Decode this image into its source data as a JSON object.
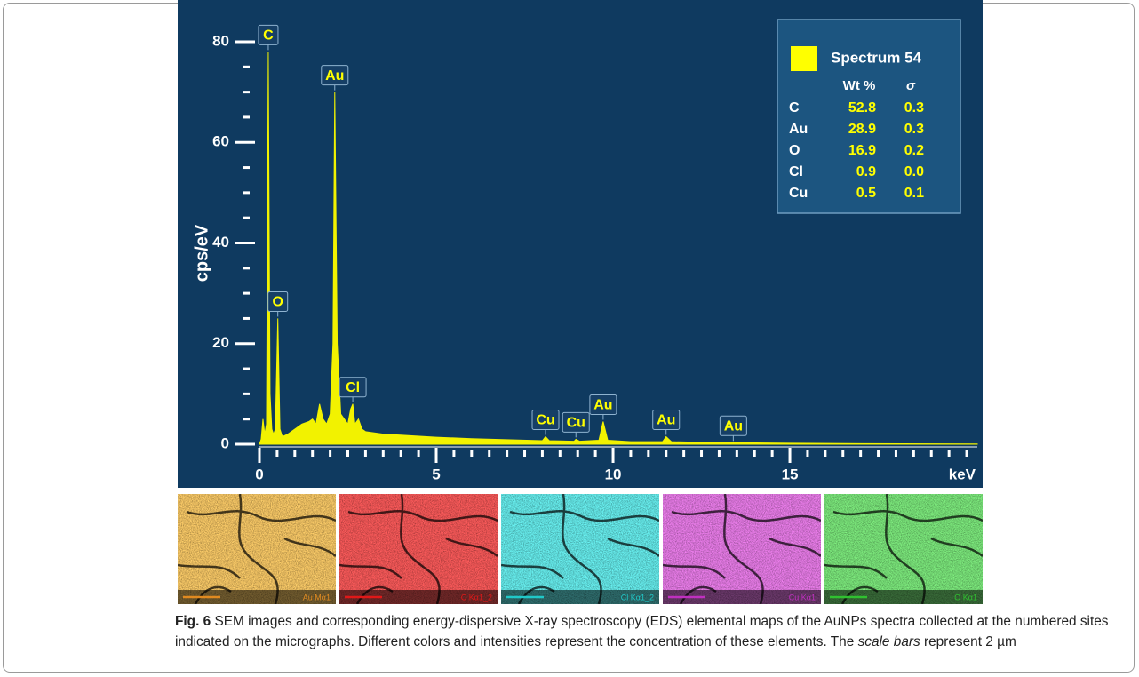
{
  "chart_data": {
    "type": "area",
    "y_label": "cps/eV",
    "x_label": "keV",
    "color": "#f2f200",
    "x": [
      0,
      0.05,
      0.1,
      0.15,
      0.2,
      0.25,
      0.3,
      0.35,
      0.4,
      0.45,
      0.52,
      0.58,
      0.65,
      0.8,
      1.0,
      1.2,
      1.4,
      1.5,
      1.6,
      1.7,
      1.8,
      1.9,
      2.0,
      2.08,
      2.13,
      2.2,
      2.3,
      2.4,
      2.5,
      2.58,
      2.64,
      2.7,
      2.8,
      2.9,
      3.0,
      3.5,
      4,
      5,
      6,
      7,
      8,
      8.09,
      8.2,
      8.9,
      8.95,
      9.05,
      9.6,
      9.72,
      9.85,
      10.5,
      11.4,
      11.5,
      11.65,
      13,
      13.4,
      15,
      17,
      20.3
    ],
    "values": [
      0,
      1,
      5,
      2,
      4,
      78,
      10,
      3,
      2,
      3,
      25,
      3,
      1.5,
      2,
      3,
      4,
      4.5,
      5,
      4,
      8,
      5,
      4,
      6,
      20,
      70,
      20,
      6,
      5,
      4,
      7,
      8,
      4,
      5,
      3,
      2.5,
      2,
      1.8,
      1.4,
      1.1,
      0.9,
      0.7,
      1.5,
      0.7,
      0.6,
      1,
      0.6,
      0.8,
      4.5,
      0.8,
      0.5,
      0.5,
      1.5,
      0.5,
      0.3,
      0.3,
      0.2,
      0.1,
      0.05
    ],
    "xlim": [
      0,
      20.3
    ],
    "ylim": [
      0,
      80
    ],
    "xticks": [
      0,
      5,
      10,
      15
    ],
    "yticks": [
      0,
      20,
      40,
      60,
      80
    ],
    "xminor": [
      0.5,
      1,
      1.5,
      2,
      2.5,
      3,
      3.5,
      4,
      4.5,
      5.5,
      6,
      6.5,
      7,
      7.5,
      8,
      8.5,
      9,
      9.5,
      10.5,
      11,
      11.5,
      12,
      12.5,
      13,
      13.5,
      14,
      14.5,
      15.5,
      16,
      16.5,
      17,
      17.5,
      18,
      18.5,
      19,
      19.5,
      20
    ],
    "yminor": [
      5,
      10,
      15,
      25,
      30,
      35,
      45,
      50,
      55,
      65,
      70,
      75
    ],
    "annotations": [
      {
        "text": "C",
        "x": 0.25
      },
      {
        "text": "O",
        "x": 0.52
      },
      {
        "text": "Au",
        "x": 2.13
      },
      {
        "text": "Cl",
        "x": 2.64
      },
      {
        "text": "Cu",
        "x": 8.09
      },
      {
        "text": "Cu",
        "x": 8.95
      },
      {
        "text": "Au",
        "x": 9.72
      },
      {
        "text": "Au",
        "x": 11.5
      },
      {
        "text": "Au",
        "x": 13.4
      }
    ],
    "legend": {
      "name": "Spectrum 54",
      "color": "#ffff00"
    },
    "table": {
      "header": [
        "Wt %",
        "σ"
      ],
      "rows": [
        [
          "C",
          "52.8",
          "0.3"
        ],
        [
          "Au",
          "28.9",
          "0.3"
        ],
        [
          "O",
          "16.9",
          "0.2"
        ],
        [
          "Cl",
          "0.9",
          "0.0"
        ],
        [
          "Cu",
          "0.5",
          "0.1"
        ]
      ]
    }
  },
  "maps": [
    {
      "label": "Au Mα1",
      "color": "#e08a20"
    },
    {
      "label": "C Kα1_2",
      "color": "#e01818"
    },
    {
      "label": "Cl Kα1_2",
      "color": "#20c8c8"
    },
    {
      "label": "Cu Kα1",
      "color": "#c030c0"
    },
    {
      "label": "O Kα1",
      "color": "#30c030"
    }
  ],
  "caption": {
    "label": "Fig. 6",
    "text": "SEM images and corresponding energy-dispersive X-ray spectroscopy (EDS) elemental maps of the AuNPs spectra collected at the numbered sites indicated on the micrographs. Different colors and intensities represent the concentration of these elements. The",
    "emphasis": "scale bars",
    "text_end": "represent 2 µm"
  }
}
